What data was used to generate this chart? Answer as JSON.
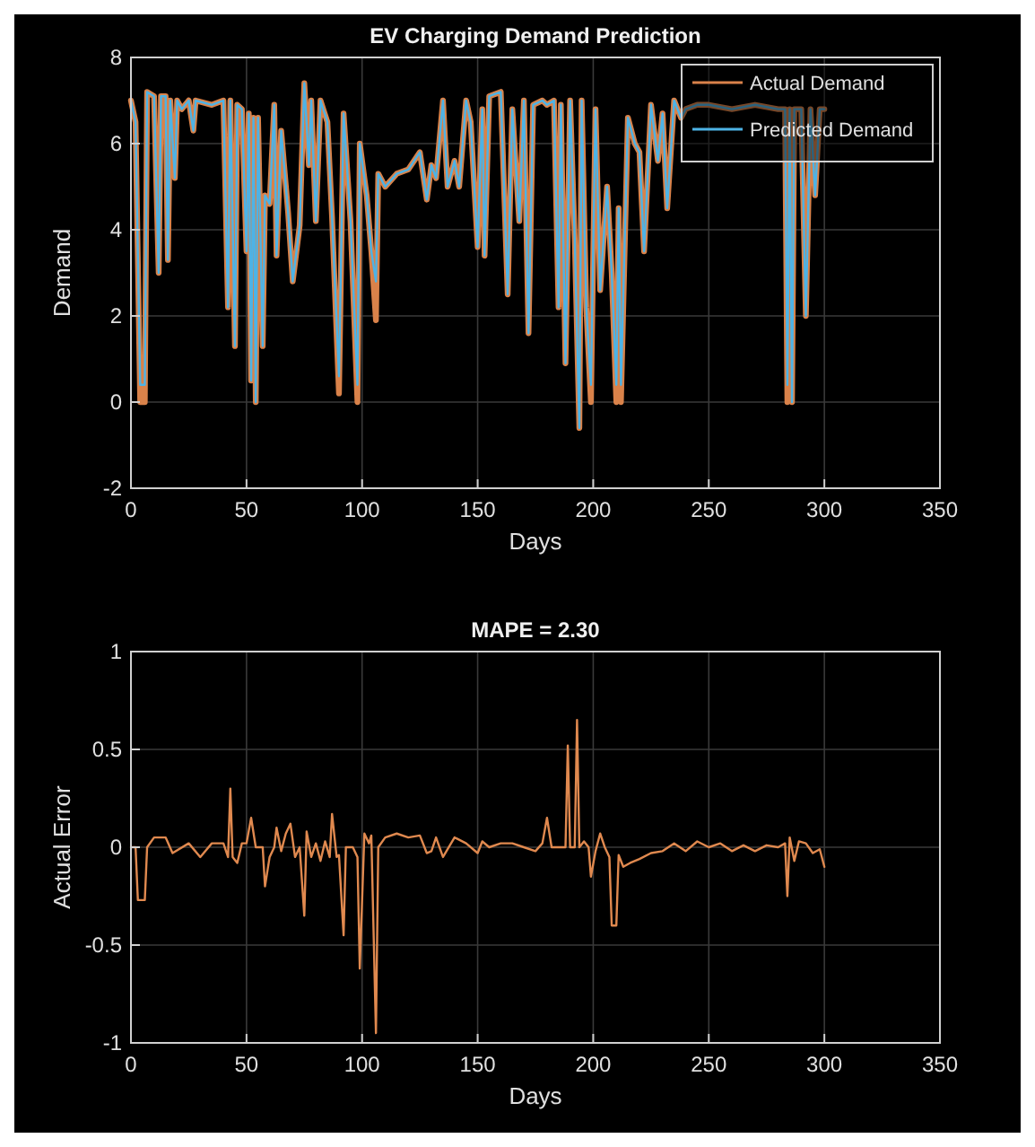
{
  "chart_data": [
    {
      "type": "line",
      "title": "EV Charging Demand Prediction",
      "xlabel": "Days",
      "ylabel": "Demand",
      "x": [
        0,
        2,
        4,
        6,
        7,
        10,
        12,
        13,
        15,
        16,
        17,
        19,
        20,
        22,
        25,
        27,
        28,
        35,
        40,
        42,
        43,
        45,
        46,
        48,
        50,
        51,
        52,
        53,
        54,
        55,
        57,
        58,
        60,
        62,
        63,
        65,
        68,
        70,
        73,
        75,
        77,
        78,
        80,
        82,
        85,
        87,
        90,
        92,
        95,
        98,
        99,
        102,
        104,
        106,
        107,
        110,
        115,
        120,
        125,
        128,
        130,
        132,
        135,
        137,
        140,
        142,
        145,
        147,
        150,
        152,
        153,
        155,
        160,
        163,
        165,
        168,
        170,
        172,
        174,
        178,
        180,
        183,
        185,
        186,
        188,
        190,
        192,
        194,
        195,
        197,
        199,
        201,
        203,
        206,
        208,
        210,
        211,
        212,
        215,
        218,
        220,
        222,
        225,
        228,
        230,
        232,
        235,
        238,
        240,
        245,
        250,
        260,
        270,
        280,
        283,
        284,
        285,
        286,
        287,
        290,
        292,
        294,
        296,
        298,
        300
      ],
      "series": [
        {
          "name": "Actual Demand",
          "color": "#d9824a",
          "values": [
            7,
            6.5,
            0,
            0,
            7.2,
            7.1,
            3,
            7.1,
            7.1,
            3.3,
            7,
            5.2,
            7,
            6.8,
            7,
            6.3,
            7,
            6.9,
            7,
            2.2,
            7,
            1.3,
            6.9,
            6.8,
            3.5,
            6.7,
            0.5,
            6.6,
            0,
            6.6,
            1.3,
            4.8,
            4.6,
            6.9,
            3.4,
            6.3,
            4.4,
            2.8,
            4.1,
            7.4,
            5.5,
            7,
            4.2,
            7,
            6.5,
            4.3,
            0.2,
            6.7,
            4.2,
            0,
            6,
            4.8,
            3.5,
            1.9,
            5.3,
            5,
            5.3,
            5.4,
            5.8,
            4.7,
            5.5,
            5.2,
            7,
            5,
            5.6,
            5,
            7,
            6.5,
            3.6,
            6.8,
            3.4,
            7.1,
            7.2,
            2.5,
            6.8,
            4.2,
            7,
            1.6,
            6.9,
            7,
            6.9,
            7,
            2.2,
            6.9,
            0.9,
            7,
            3.8,
            -0.6,
            7,
            2.2,
            0,
            6.8,
            2.6,
            5,
            3,
            0,
            4.5,
            0,
            6.6,
            6,
            5.8,
            3.5,
            6.9,
            5.6,
            6.7,
            4.5,
            7,
            6.6,
            6.8,
            6.9,
            6.9,
            6.8,
            6.9,
            6.8,
            6.8,
            0,
            6.8,
            0,
            6.8,
            6.8,
            2,
            6.8,
            4.8,
            6.8,
            6.8
          ]
        },
        {
          "name": "Predicted Demand",
          "color": "#4db3e6",
          "values": [
            7,
            6.5,
            0.4,
            0.4,
            7.2,
            7.1,
            3,
            7.1,
            7.1,
            3.3,
            7,
            5.2,
            7,
            6.8,
            7,
            6.3,
            7,
            6.9,
            7,
            2.2,
            7,
            1.3,
            6.9,
            6.8,
            3.5,
            6.7,
            0.5,
            6.6,
            0,
            6.6,
            1.3,
            4.8,
            4.6,
            6.9,
            3.4,
            6.3,
            4.4,
            2.8,
            4.1,
            7.4,
            5.5,
            7,
            4.2,
            7,
            6.5,
            4.3,
            0.6,
            6.7,
            4.2,
            0.4,
            6,
            4.8,
            3.5,
            2.8,
            5.3,
            5,
            5.3,
            5.4,
            5.8,
            4.7,
            5.5,
            5.2,
            7,
            5,
            5.6,
            5,
            7,
            6.5,
            3.6,
            6.8,
            3.4,
            7.1,
            7.2,
            2.5,
            6.8,
            4.2,
            7,
            1.6,
            6.9,
            7,
            6.9,
            7,
            2.2,
            6.9,
            0.9,
            7,
            3.8,
            -0.6,
            7,
            2.2,
            0.4,
            6.8,
            2.6,
            5,
            3,
            0.4,
            4.5,
            0.4,
            6.6,
            6,
            5.8,
            3.5,
            6.9,
            5.6,
            6.7,
            4.5,
            7,
            6.6,
            6.8,
            6.9,
            6.9,
            6.8,
            6.9,
            6.8,
            6.8,
            0.4,
            6.8,
            0,
            6.8,
            6.8,
            2,
            6.8,
            4.8,
            6.8,
            6.8
          ]
        }
      ],
      "xlim": [
        0,
        350
      ],
      "xticks": [
        0,
        50,
        100,
        150,
        200,
        250,
        300,
        350
      ],
      "ylim": [
        -2,
        8
      ],
      "yticks": [
        -2,
        0,
        2,
        4,
        6,
        8
      ],
      "grid": true,
      "legend": "top right"
    },
    {
      "type": "line",
      "title": "MAPE = 2.30",
      "xlabel": "Days",
      "ylabel": "Actual Error",
      "x": [
        0,
        2,
        3,
        6,
        7,
        10,
        15,
        18,
        25,
        30,
        35,
        40,
        42,
        43,
        44,
        46,
        48,
        50,
        52,
        54,
        57,
        58,
        60,
        62,
        63,
        65,
        67,
        69,
        71,
        73,
        75,
        76,
        78,
        80,
        82,
        84,
        86,
        87,
        89,
        90,
        92,
        93,
        96,
        98,
        99,
        101,
        103,
        104,
        106,
        107,
        110,
        115,
        120,
        125,
        128,
        130,
        132,
        135,
        140,
        145,
        150,
        152,
        155,
        160,
        165,
        170,
        175,
        178,
        180,
        182,
        188,
        189,
        190,
        192,
        193,
        194,
        196,
        198,
        199,
        201,
        203,
        205,
        207,
        208,
        210,
        211,
        213,
        216,
        220,
        225,
        230,
        235,
        240,
        245,
        250,
        255,
        260,
        265,
        270,
        275,
        280,
        283,
        284,
        285,
        287,
        289,
        292,
        295,
        298,
        300
      ],
      "series": [
        {
          "color": "#e0894f",
          "values": [
            0,
            0,
            -0.27,
            -0.27,
            0,
            0.05,
            0.05,
            -0.03,
            0.02,
            -0.05,
            0.02,
            0.02,
            -0.05,
            0.3,
            -0.05,
            -0.08,
            0.02,
            0.02,
            0.15,
            0,
            0,
            -0.2,
            -0.05,
            0,
            0.1,
            -0.02,
            0.07,
            0.12,
            -0.05,
            0,
            -0.35,
            0.08,
            -0.05,
            0.02,
            -0.07,
            0.03,
            -0.05,
            0.17,
            -0.05,
            -0.04,
            -0.45,
            0,
            0,
            -0.05,
            -0.62,
            0.07,
            0.02,
            0.06,
            -0.95,
            0,
            0.05,
            0.07,
            0.05,
            0.06,
            -0.03,
            -0.02,
            0.05,
            -0.05,
            0.05,
            0.02,
            -0.03,
            0.03,
            0,
            0.02,
            0.02,
            0,
            -0.02,
            0.02,
            0.15,
            0,
            0,
            0.52,
            0,
            0,
            0.65,
            0,
            0.03,
            0,
            -0.15,
            -0.02,
            0.07,
            0,
            -0.05,
            -0.4,
            -0.4,
            -0.04,
            -0.1,
            -0.08,
            -0.06,
            -0.03,
            -0.02,
            0.02,
            -0.02,
            0.03,
            0,
            0.02,
            -0.02,
            0.01,
            -0.02,
            0.01,
            0,
            0.02,
            -0.25,
            0.05,
            -0.07,
            0.03,
            0.02,
            -0.03,
            -0.01,
            -0.1
          ]
        }
      ],
      "xlim": [
        0,
        350
      ],
      "xticks": [
        0,
        50,
        100,
        150,
        200,
        250,
        300,
        350
      ],
      "ylim": [
        -1,
        1
      ],
      "yticks": [
        -1,
        -0.5,
        0,
        0.5,
        1
      ],
      "grid": true
    }
  ]
}
